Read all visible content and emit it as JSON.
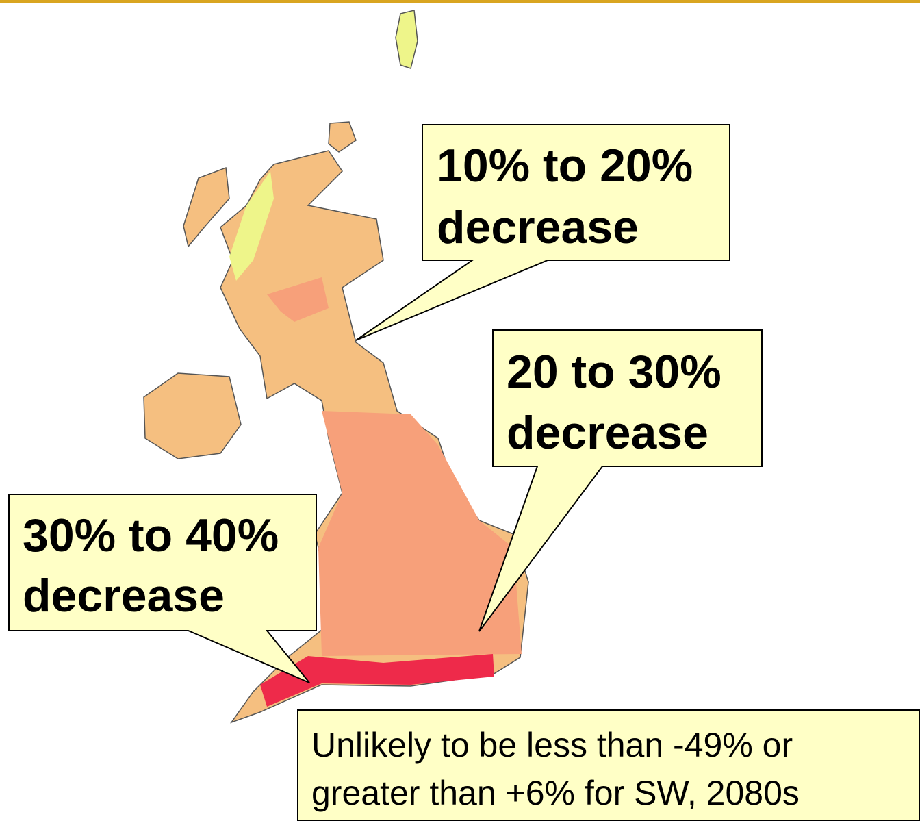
{
  "callouts": [
    {
      "lines": [
        "10% to 20%",
        "decrease"
      ]
    },
    {
      "lines": [
        "20 to 30%",
        "decrease"
      ]
    },
    {
      "lines": [
        "30% to 40%",
        "decrease"
      ]
    }
  ],
  "note": {
    "lines": [
      "Unlikely to be less than -49% or",
      "greater than +6% for SW, 2080s"
    ]
  }
}
